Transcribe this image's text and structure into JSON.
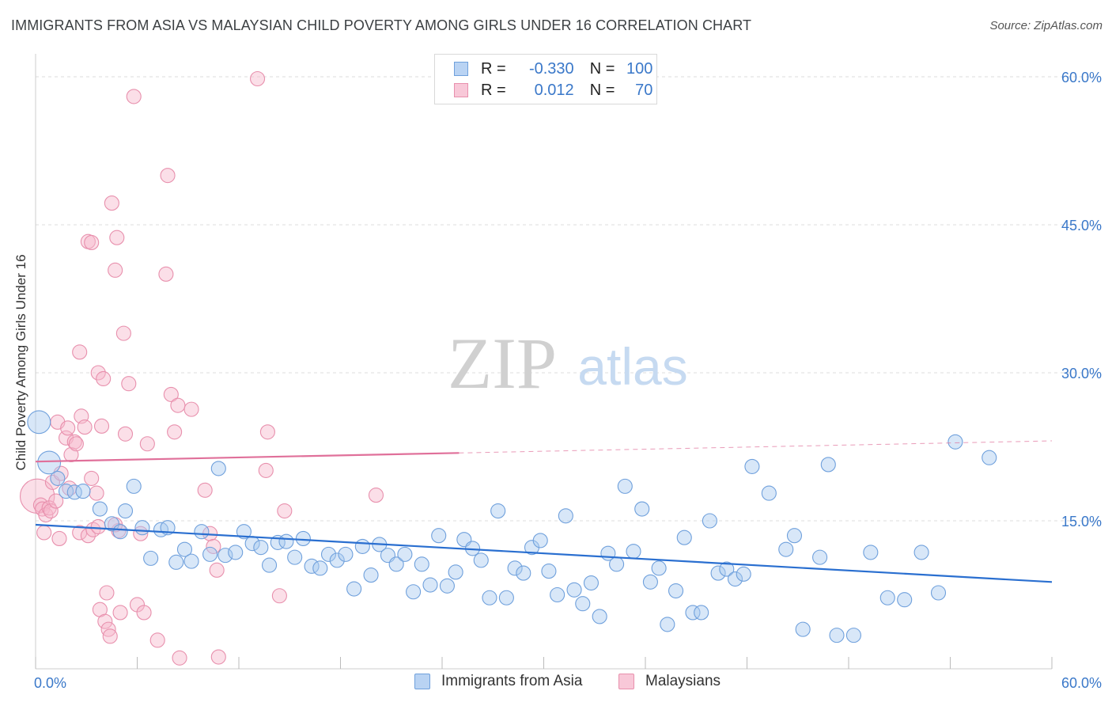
{
  "header": {
    "title": "IMMIGRANTS FROM ASIA VS MALAYSIAN CHILD POVERTY AMONG GIRLS UNDER 16 CORRELATION CHART",
    "source": "Source: ZipAtlas.com"
  },
  "watermark": {
    "zip": "ZIP",
    "atlas": "atlas"
  },
  "legend": {
    "r_label": "R =",
    "n_label": "N =",
    "series": [
      {
        "r": "-0.330",
        "n": "100"
      },
      {
        "r": "0.012",
        "n": "70"
      }
    ]
  },
  "bottom_legend": [
    "Immigrants from Asia",
    "Malaysians"
  ],
  "colors": {
    "blue_fill": "#a9c9f0",
    "blue_stroke": "#6fa0dc",
    "blue_line": "#2a6fd0",
    "pink_fill": "#f6b8cd",
    "pink_stroke": "#e890ad",
    "pink_line": "#e0709a",
    "axis_text": "#3a78c9",
    "grid": "#dcdcdc"
  },
  "chart_data": {
    "type": "scatter",
    "title": "IMMIGRANTS FROM ASIA VS MALAYSIAN CHILD POVERTY AMONG GIRLS UNDER 16 CORRELATION CHART",
    "xlabel": "",
    "ylabel": "Child Poverty Among Girls Under 16",
    "xlim": [
      0,
      60
    ],
    "ylim": [
      0,
      60
    ],
    "x_tick_labels": [
      "0.0%",
      "60.0%"
    ],
    "y_ticks": [
      15,
      30,
      45,
      60
    ],
    "y_tick_labels": [
      "15.0%",
      "30.0%",
      "45.0%",
      "60.0%"
    ],
    "grid": "horizontal dashed",
    "legend_placement": "top-center",
    "series": [
      {
        "name": "Immigrants from Asia",
        "r": -0.33,
        "n": 100,
        "trend": {
          "x": [
            0,
            60
          ],
          "y": [
            14.6,
            8.8
          ],
          "dashed_from": null
        },
        "points": [
          [
            0.2,
            25.0,
            1.6
          ],
          [
            0.8,
            20.9,
            1.6
          ],
          [
            1.3,
            19.3,
            1.0
          ],
          [
            1.8,
            18.0,
            1.0
          ],
          [
            2.3,
            17.9,
            1.0
          ],
          [
            2.8,
            18.0,
            1.0
          ],
          [
            3.8,
            16.2,
            1.0
          ],
          [
            4.5,
            14.7,
            1.0
          ],
          [
            5.0,
            13.9,
            1.0
          ],
          [
            5.3,
            16.0,
            1.0
          ],
          [
            5.8,
            18.5,
            1.0
          ],
          [
            6.3,
            14.3,
            1.0
          ],
          [
            6.8,
            11.2,
            1.0
          ],
          [
            7.4,
            14.1,
            1.0
          ],
          [
            7.8,
            14.3,
            1.0
          ],
          [
            8.3,
            10.8,
            1.0
          ],
          [
            8.8,
            12.1,
            1.0
          ],
          [
            9.2,
            10.9,
            1.0
          ],
          [
            9.8,
            13.9,
            1.0
          ],
          [
            10.3,
            11.6,
            1.0
          ],
          [
            10.8,
            20.3,
            1.0
          ],
          [
            11.2,
            11.5,
            1.0
          ],
          [
            11.8,
            11.8,
            1.0
          ],
          [
            12.3,
            13.9,
            1.0
          ],
          [
            12.8,
            12.7,
            1.0
          ],
          [
            13.3,
            12.3,
            1.0
          ],
          [
            13.8,
            10.5,
            1.0
          ],
          [
            14.3,
            12.8,
            1.0
          ],
          [
            14.8,
            12.9,
            1.0
          ],
          [
            15.3,
            11.3,
            1.0
          ],
          [
            15.8,
            13.2,
            1.0
          ],
          [
            16.3,
            10.4,
            1.0
          ],
          [
            16.8,
            10.2,
            1.0
          ],
          [
            17.3,
            11.6,
            1.0
          ],
          [
            17.8,
            11.0,
            1.0
          ],
          [
            18.3,
            11.6,
            1.0
          ],
          [
            18.8,
            8.1,
            1.0
          ],
          [
            19.3,
            12.4,
            1.0
          ],
          [
            19.8,
            9.5,
            1.0
          ],
          [
            20.3,
            12.6,
            1.0
          ],
          [
            20.8,
            11.5,
            1.0
          ],
          [
            21.3,
            10.6,
            1.0
          ],
          [
            21.8,
            11.6,
            1.0
          ],
          [
            22.3,
            7.8,
            1.0
          ],
          [
            22.8,
            10.6,
            1.0
          ],
          [
            23.3,
            8.5,
            1.0
          ],
          [
            23.8,
            13.5,
            1.0
          ],
          [
            24.3,
            8.4,
            1.0
          ],
          [
            24.8,
            9.8,
            1.0
          ],
          [
            25.3,
            13.1,
            1.0
          ],
          [
            25.8,
            12.2,
            1.0
          ],
          [
            26.3,
            11.0,
            1.0
          ],
          [
            26.8,
            7.2,
            1.0
          ],
          [
            27.3,
            16.0,
            1.0
          ],
          [
            27.8,
            7.2,
            1.0
          ],
          [
            28.3,
            10.2,
            1.0
          ],
          [
            28.8,
            9.7,
            1.0
          ],
          [
            29.3,
            12.3,
            1.0
          ],
          [
            29.8,
            13.0,
            1.0
          ],
          [
            30.3,
            9.9,
            1.0
          ],
          [
            30.8,
            7.5,
            1.0
          ],
          [
            31.3,
            15.5,
            1.0
          ],
          [
            31.8,
            8.0,
            1.0
          ],
          [
            32.3,
            6.6,
            1.0
          ],
          [
            32.8,
            8.7,
            1.0
          ],
          [
            33.3,
            5.3,
            1.0
          ],
          [
            33.8,
            11.7,
            1.0
          ],
          [
            34.3,
            10.6,
            1.0
          ],
          [
            34.8,
            18.5,
            1.0
          ],
          [
            35.3,
            11.9,
            1.0
          ],
          [
            35.8,
            16.2,
            1.0
          ],
          [
            36.3,
            8.8,
            1.0
          ],
          [
            36.8,
            10.2,
            1.0
          ],
          [
            37.3,
            4.5,
            1.0
          ],
          [
            37.8,
            7.9,
            1.0
          ],
          [
            38.3,
            13.3,
            1.0
          ],
          [
            38.8,
            5.7,
            1.0
          ],
          [
            39.3,
            5.7,
            1.0
          ],
          [
            39.8,
            15.0,
            1.0
          ],
          [
            40.3,
            9.7,
            1.0
          ],
          [
            40.8,
            10.1,
            1.0
          ],
          [
            41.3,
            9.1,
            1.0
          ],
          [
            41.8,
            9.6,
            1.0
          ],
          [
            42.3,
            20.5,
            1.0
          ],
          [
            43.3,
            17.8,
            1.0
          ],
          [
            44.3,
            12.1,
            1.0
          ],
          [
            44.8,
            13.5,
            1.0
          ],
          [
            45.3,
            4.0,
            1.0
          ],
          [
            46.3,
            11.3,
            1.0
          ],
          [
            46.8,
            20.7,
            1.0
          ],
          [
            47.3,
            3.4,
            1.0
          ],
          [
            48.3,
            3.4,
            1.0
          ],
          [
            49.3,
            11.8,
            1.0
          ],
          [
            50.3,
            7.2,
            1.0
          ],
          [
            51.3,
            7.0,
            1.0
          ],
          [
            52.3,
            11.8,
            1.0
          ],
          [
            53.3,
            7.7,
            1.0
          ],
          [
            54.3,
            23.0,
            1.0
          ],
          [
            56.3,
            21.4,
            1.0
          ]
        ]
      },
      {
        "name": "Malaysians",
        "r": 0.012,
        "n": 70,
        "trend": {
          "x": [
            0,
            60
          ],
          "y": [
            21.0,
            23.1
          ],
          "dashed_from": 25
        },
        "points": [
          [
            0.1,
            17.5,
            2.4
          ],
          [
            0.3,
            16.6,
            1.0
          ],
          [
            0.4,
            16.2,
            1.0
          ],
          [
            0.5,
            13.8,
            1.0
          ],
          [
            0.6,
            15.6,
            1.0
          ],
          [
            0.8,
            16.3,
            1.0
          ],
          [
            0.9,
            16.0,
            1.0
          ],
          [
            1.0,
            18.9,
            1.0
          ],
          [
            1.2,
            17.0,
            1.0
          ],
          [
            1.3,
            25.0,
            1.0
          ],
          [
            1.4,
            13.2,
            1.0
          ],
          [
            1.5,
            19.8,
            1.0
          ],
          [
            1.8,
            23.4,
            1.0
          ],
          [
            1.9,
            24.4,
            1.0
          ],
          [
            2.0,
            18.3,
            1.0
          ],
          [
            2.1,
            21.7,
            1.0
          ],
          [
            2.3,
            23.0,
            1.0
          ],
          [
            2.4,
            22.8,
            1.0
          ],
          [
            2.6,
            13.8,
            1.0
          ],
          [
            2.7,
            25.6,
            1.0
          ],
          [
            2.9,
            24.5,
            1.0
          ],
          [
            3.1,
            13.5,
            1.0
          ],
          [
            3.3,
            19.3,
            1.0
          ],
          [
            3.4,
            14.1,
            1.0
          ],
          [
            3.6,
            17.8,
            1.0
          ],
          [
            3.7,
            14.4,
            1.0
          ],
          [
            3.7,
            30.0,
            1.0
          ],
          [
            2.6,
            32.1,
            1.0
          ],
          [
            3.1,
            43.3,
            1.0
          ],
          [
            3.3,
            43.2,
            1.0
          ],
          [
            3.8,
            6.0,
            1.0
          ],
          [
            3.9,
            24.6,
            1.0
          ],
          [
            4.0,
            29.4,
            1.0
          ],
          [
            4.1,
            4.8,
            1.0
          ],
          [
            4.2,
            7.7,
            1.0
          ],
          [
            4.3,
            4.0,
            1.0
          ],
          [
            4.4,
            3.3,
            1.0
          ],
          [
            4.5,
            47.2,
            1.0
          ],
          [
            4.7,
            40.4,
            1.0
          ],
          [
            4.8,
            43.7,
            1.0
          ],
          [
            4.9,
            14.0,
            1.0
          ],
          [
            5.0,
            5.7,
            1.0
          ],
          [
            5.2,
            34.0,
            1.0
          ],
          [
            5.3,
            23.8,
            1.0
          ],
          [
            5.5,
            28.9,
            1.0
          ],
          [
            5.8,
            58.0,
            1.0
          ],
          [
            6.0,
            6.5,
            1.0
          ],
          [
            6.2,
            13.7,
            1.0
          ],
          [
            6.4,
            5.7,
            1.0
          ],
          [
            6.6,
            22.8,
            1.0
          ],
          [
            7.2,
            2.9,
            1.0
          ],
          [
            7.7,
            40.0,
            1.0
          ],
          [
            7.8,
            50.0,
            1.0
          ],
          [
            8.0,
            27.8,
            1.0
          ],
          [
            8.2,
            24.0,
            1.0
          ],
          [
            8.4,
            26.7,
            1.0
          ],
          [
            8.5,
            1.1,
            1.0
          ],
          [
            9.2,
            26.3,
            1.0
          ],
          [
            10.0,
            18.1,
            1.0
          ],
          [
            10.3,
            13.7,
            1.0
          ],
          [
            10.5,
            12.4,
            1.0
          ],
          [
            10.7,
            10.0,
            1.0
          ],
          [
            10.8,
            1.2,
            1.0
          ],
          [
            13.6,
            20.1,
            1.0
          ],
          [
            13.7,
            24.0,
            1.0
          ],
          [
            14.4,
            7.4,
            1.0
          ],
          [
            14.7,
            16.0,
            1.0
          ],
          [
            13.1,
            59.8,
            1.0
          ],
          [
            20.1,
            17.6,
            1.0
          ],
          [
            4.7,
            14.6,
            1.0
          ]
        ]
      }
    ]
  }
}
